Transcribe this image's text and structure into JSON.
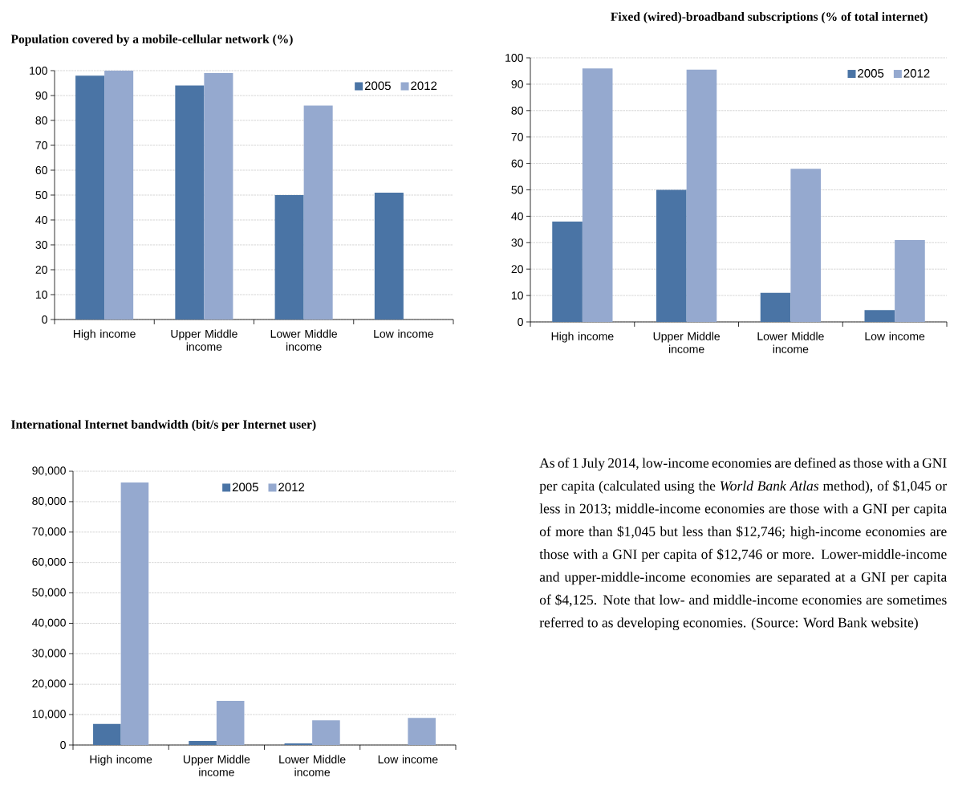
{
  "chart_data": [
    {
      "type": "bar",
      "title": "Population covered by a mobile-cellular network (%)",
      "categories": [
        "High income",
        "Upper Middle income",
        "Lower Middle income",
        "Low income"
      ],
      "series": [
        {
          "name": "2005",
          "color": "#4a74a5",
          "values": [
            98,
            94,
            50,
            51
          ]
        },
        {
          "name": "2012",
          "color": "#95a9cf",
          "values": [
            100,
            99,
            86,
            null
          ]
        }
      ],
      "ylim": [
        0,
        100
      ],
      "yticks": [
        0,
        10,
        20,
        30,
        40,
        50,
        60,
        70,
        80,
        90,
        100
      ],
      "grid": "y",
      "legend": "top right"
    },
    {
      "type": "bar",
      "title": "Fixed (wired)-broadband subscriptions (% of total internet)",
      "categories": [
        "High income",
        "Upper Middle income",
        "Lower Middle income",
        "Low income"
      ],
      "series": [
        {
          "name": "2005",
          "color": "#4a74a5",
          "values": [
            38,
            50,
            11,
            4.5
          ]
        },
        {
          "name": "2012",
          "color": "#95a9cf",
          "values": [
            96,
            95.5,
            58,
            31
          ]
        }
      ],
      "ylim": [
        0,
        100
      ],
      "yticks": [
        0,
        10,
        20,
        30,
        40,
        50,
        60,
        70,
        80,
        90,
        100
      ],
      "grid": "y",
      "legend": "top right"
    },
    {
      "type": "bar",
      "title": "International Internet bandwidth (bit/s per Internet user)",
      "categories": [
        "High income",
        "Upper Middle income",
        "Lower Middle income",
        "Low income"
      ],
      "series": [
        {
          "name": "2005",
          "color": "#4a74a5",
          "values": [
            6900,
            1300,
            500,
            null
          ]
        },
        {
          "name": "2012",
          "color": "#95a9cf",
          "values": [
            86300,
            14500,
            8100,
            8900
          ]
        }
      ],
      "ylim": [
        0,
        90000
      ],
      "yticks": [
        {
          "value": 0,
          "label": "0"
        },
        {
          "value": 10000,
          "label": "10,000"
        },
        {
          "value": 20000,
          "label": "20,000"
        },
        {
          "value": 30000,
          "label": "30,000"
        },
        {
          "value": 40000,
          "label": "40,000"
        },
        {
          "value": 50000,
          "label": "50,000"
        },
        {
          "value": 60000,
          "label": "60,000"
        },
        {
          "value": 70000,
          "label": "70,000"
        },
        {
          "value": 80000,
          "label": "80,000"
        },
        {
          "value": 90000,
          "label": "90,000"
        }
      ],
      "grid": "y",
      "legend": "top"
    },
    {
      "type": "other",
      "annotations": [
        "As of 1 July 2014, low-income economies are defined as those with a GNI per capita (calculated using the *World Bank Atlas* method), of $1,045 or less in 2013; middle-income economies are those with a GNI per capita of more than $1,045 but less than $12,746; high-income economies are those with a GNI per capita of $12,746 or more. Lower-middle-income and upper-middle-income economies are separated at a GNI per capita of $4,125. Note that low- and middle-income economies are sometimes referred to as developing economies. (Source: Word Bank website)"
      ]
    }
  ]
}
